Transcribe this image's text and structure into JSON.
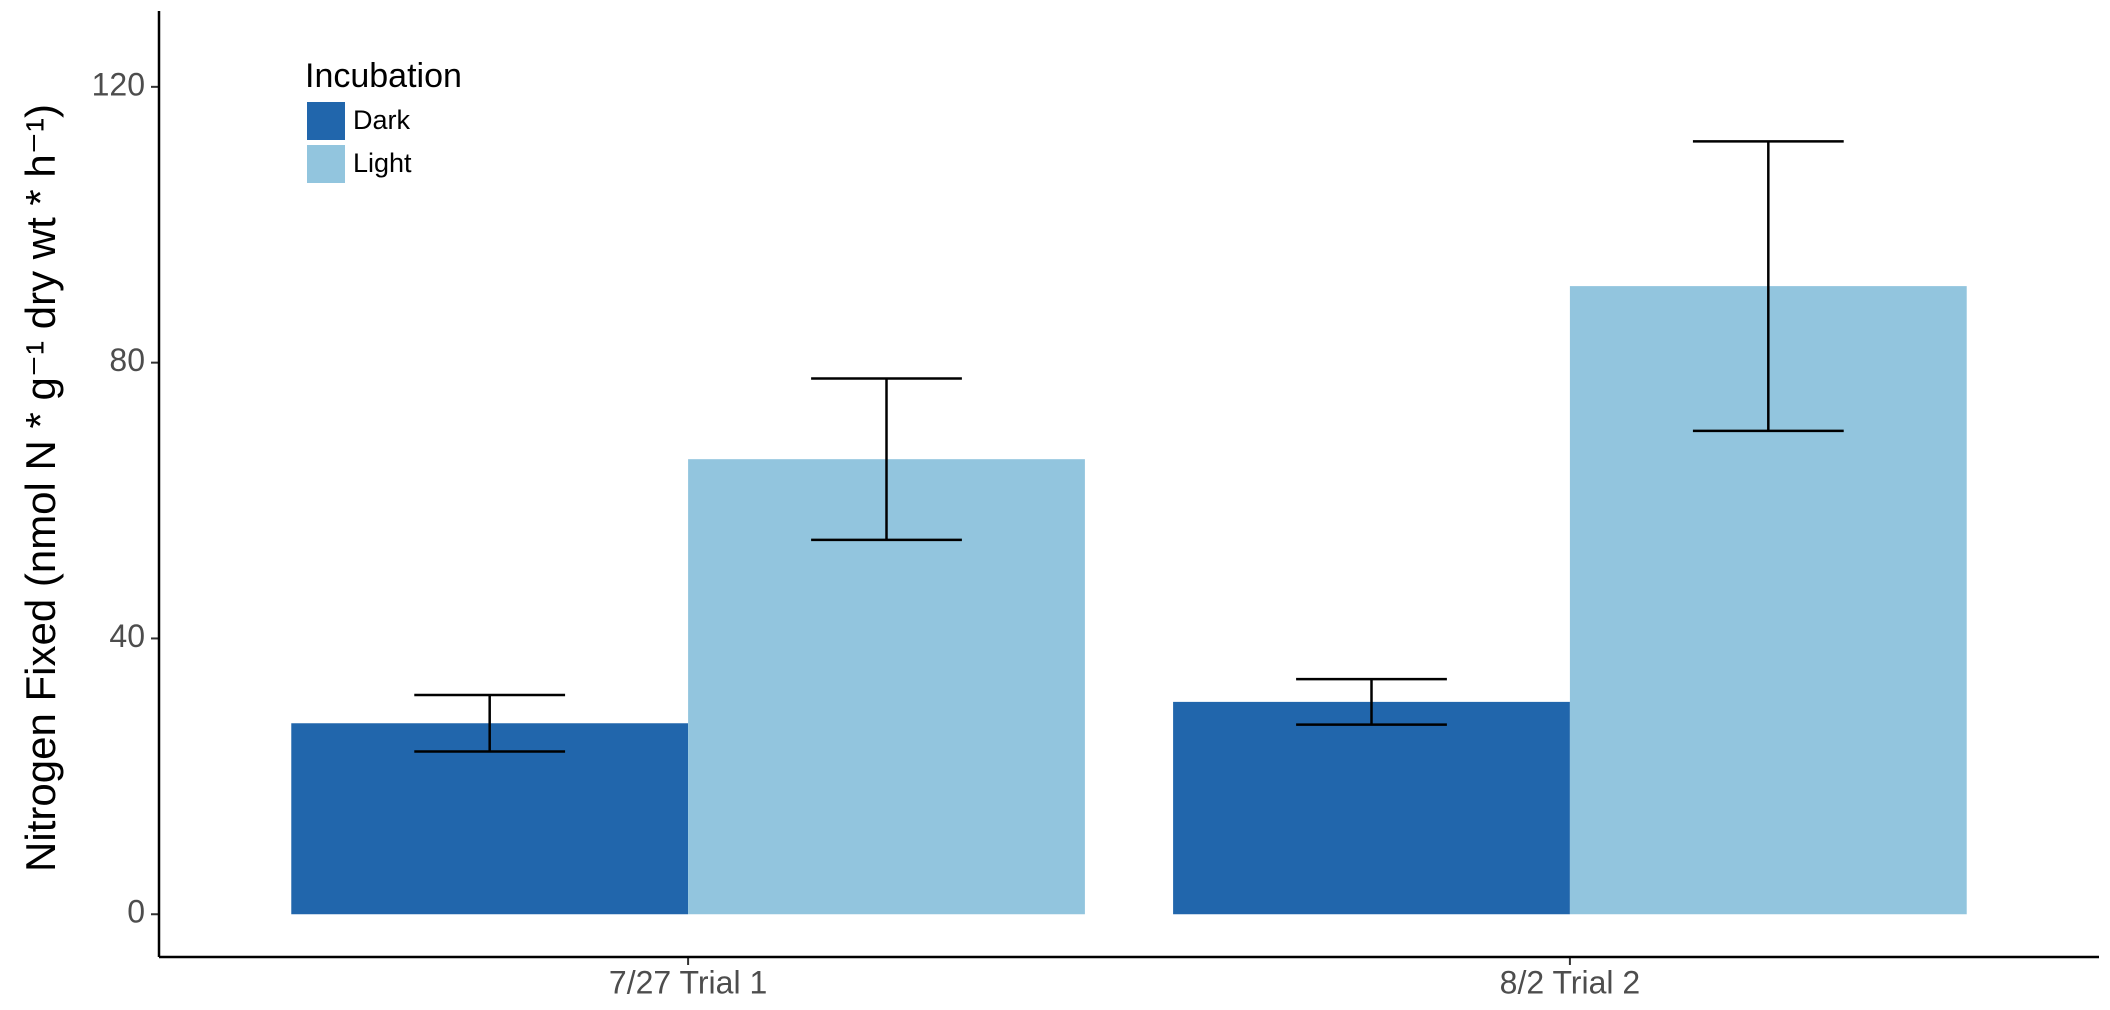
{
  "chart_data": {
    "type": "bar",
    "y_label": "Nitrogen Fixed (nmol N * g⁻¹ dry wt * h⁻¹)",
    "categories": [
      "7/27 Trial 1",
      "8/2 Trial 2"
    ],
    "legend_title": "Incubation",
    "legend_position": "top-left",
    "series": [
      {
        "name": "Dark",
        "color": "#2166ac",
        "values": [
          27.7,
          30.8
        ],
        "errors": [
          4.1,
          3.3
        ]
      },
      {
        "name": "Light",
        "color": "#92c5de",
        "values": [
          66.0,
          91.1
        ],
        "errors": [
          11.7,
          21.0
        ]
      }
    ],
    "ylim": [
      -6.2,
      131
    ],
    "yticks": [
      0,
      40,
      80,
      120
    ],
    "grid": false
  }
}
